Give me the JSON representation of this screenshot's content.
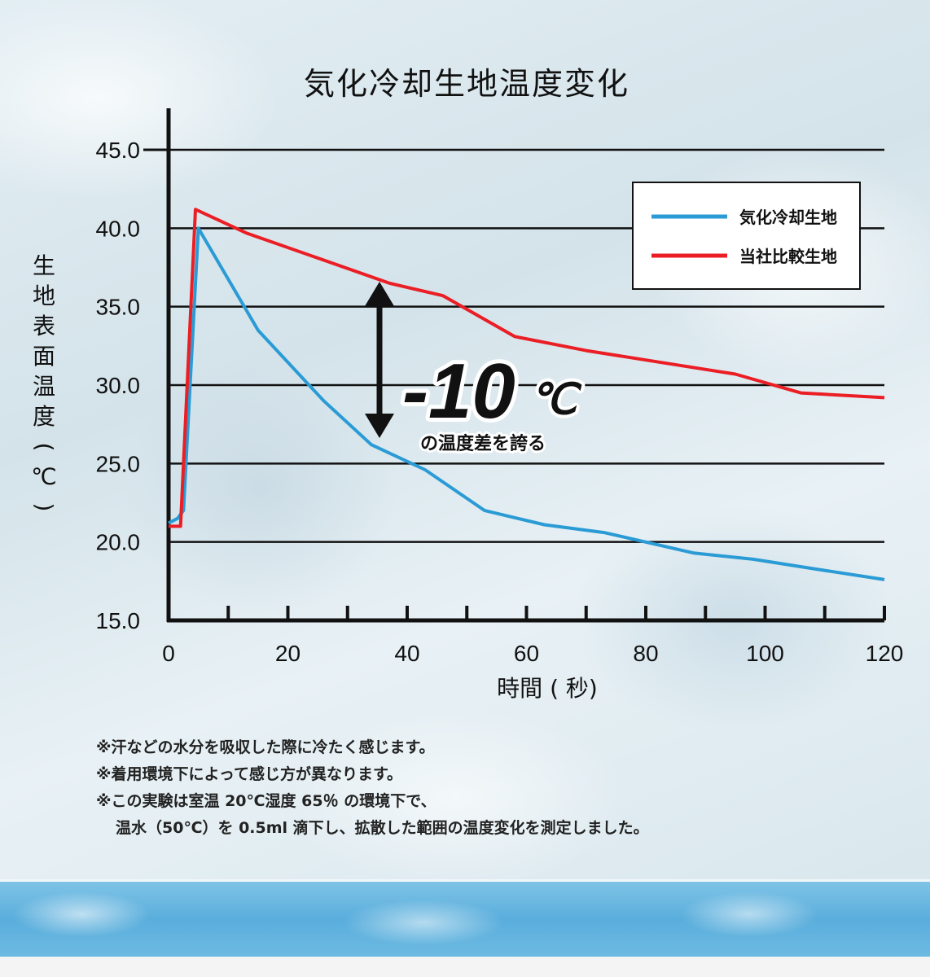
{
  "chart_data": {
    "type": "line",
    "title": "気化冷却生地温度変化",
    "xlabel": "時間 ( 秒)",
    "ylabel": "生地表面温度(℃)",
    "xlim": [
      0,
      120
    ],
    "ylim": [
      15,
      45
    ],
    "x_ticks": [
      "0",
      "20",
      "40",
      "60",
      "80",
      "100",
      "120"
    ],
    "y_ticks": [
      "15.0",
      "20.0",
      "25.0",
      "30.0",
      "35.0",
      "40.0",
      "45.0"
    ],
    "grid": true,
    "legend_position": "top-right",
    "series": [
      {
        "name": "気化冷却生地",
        "color": "#2a9bd5",
        "points": [
          [
            0,
            21.2
          ],
          [
            1.5,
            21.5
          ],
          [
            2.5,
            22
          ],
          [
            5,
            40.0
          ],
          [
            15,
            33.5
          ],
          [
            26,
            29.0
          ],
          [
            34,
            26.2
          ],
          [
            43,
            24.6
          ],
          [
            53,
            22.0
          ],
          [
            63,
            21.1
          ],
          [
            73,
            20.6
          ],
          [
            88,
            19.3
          ],
          [
            98,
            18.9
          ],
          [
            108,
            18.3
          ],
          [
            120,
            17.6
          ]
        ]
      },
      {
        "name": "当社比較生地",
        "color": "#ea1e24",
        "points": [
          [
            0,
            21.0
          ],
          [
            2,
            21.0
          ],
          [
            4.5,
            41.2
          ],
          [
            13,
            39.7
          ],
          [
            25,
            38.1
          ],
          [
            37,
            36.5
          ],
          [
            46,
            35.7
          ],
          [
            58,
            33.1
          ],
          [
            70,
            32.2
          ],
          [
            80,
            31.6
          ],
          [
            95,
            30.7
          ],
          [
            106,
            29.5
          ],
          [
            120,
            29.2
          ]
        ]
      }
    ],
    "annotation": {
      "value": "-10",
      "unit": "℃",
      "caption": "の温度差を誇る"
    }
  },
  "notes": [
    "※汗などの水分を吸収した際に冷たく感じます。",
    "※着用環境下によって感じ方が異なります。",
    "※この実験は室温 20℃湿度 65％ の環境下で、",
    "温水（50℃）を 0.5ml 滴下し、拡散した範囲の温度変化を測定しました。"
  ]
}
